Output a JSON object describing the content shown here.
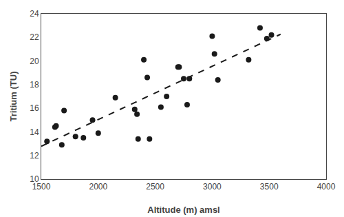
{
  "chart_data": {
    "type": "scatter",
    "xlabel": "Altitude (m) amsl",
    "ylabel": "Tritium (TU)",
    "series": [
      {
        "type": "scatter",
        "color": "#1a1a1a",
        "marker": "circle",
        "x": [
          1550,
          1620,
          1630,
          1680,
          1700,
          1800,
          1870,
          1950,
          2000,
          2150,
          2320,
          2340,
          2350,
          2400,
          2430,
          2450,
          2550,
          2600,
          2700,
          2710,
          2750,
          2780,
          2800,
          3000,
          3020,
          3050,
          3320,
          3420,
          3480,
          3520
        ],
        "values": [
          13.2,
          14.4,
          14.5,
          12.9,
          15.8,
          13.6,
          13.5,
          15.0,
          13.9,
          16.9,
          15.9,
          15.5,
          13.4,
          20.1,
          18.6,
          13.4,
          16.1,
          17.0,
          19.5,
          19.5,
          18.5,
          16.3,
          18.5,
          22.1,
          20.6,
          18.4,
          20.1,
          22.8,
          21.9,
          22.2
        ]
      },
      {
        "type": "line",
        "color": "#1a1a1a",
        "line_style": "dashed",
        "x": [
          1500,
          3600
        ],
        "values": [
          12.7805,
          22.2635
        ]
      }
    ],
    "xlim": [
      1500,
      4000
    ],
    "ylim": [
      10,
      24
    ],
    "xticks": [
      1500,
      2000,
      2500,
      3000,
      3500,
      4000
    ],
    "yticks": [
      10,
      12,
      14,
      16,
      18,
      20,
      22,
      24
    ],
    "grid": false
  }
}
